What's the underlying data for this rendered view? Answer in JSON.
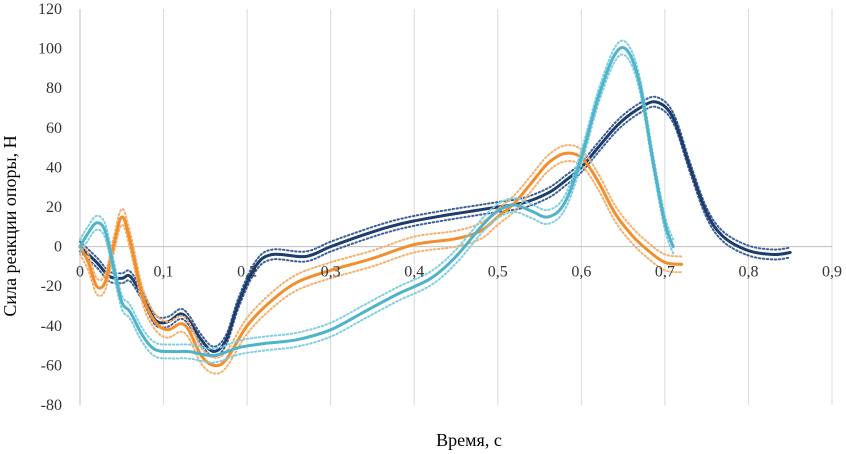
{
  "chart_data": {
    "type": "line",
    "title": "",
    "xlabel": "Время, с",
    "ylabel": "Сила реакции опоры, Н",
    "xlim": [
      0,
      0.9
    ],
    "ylim": [
      -80,
      120
    ],
    "x_ticks": [
      0,
      0.1,
      0.2,
      0.3,
      0.4,
      0.5,
      0.6,
      0.7,
      0.8,
      0.9
    ],
    "x_tick_labels": [
      "0",
      "0,1",
      "0,2",
      "0,3",
      "0,4",
      "0,5",
      "0,6",
      "0,7",
      "0,8",
      "0,9"
    ],
    "y_ticks": [
      -80,
      -60,
      -40,
      -20,
      0,
      20,
      40,
      60,
      80,
      100,
      120
    ],
    "y_tick_labels": [
      "-80",
      "-60",
      "-40",
      "-20",
      "0",
      "20",
      "40",
      "60",
      "80",
      "100",
      "120"
    ],
    "grid": "vertical",
    "legend": "none",
    "series": [
      {
        "color": "#1f3d6b",
        "band_color": "#3a5f9a",
        "band": 2.5,
        "points": [
          [
            0,
            0
          ],
          [
            0.02,
            -8
          ],
          [
            0.035,
            -15
          ],
          [
            0.05,
            -16
          ],
          [
            0.06,
            -15
          ],
          [
            0.075,
            -25
          ],
          [
            0.09,
            -37
          ],
          [
            0.105,
            -38
          ],
          [
            0.12,
            -34
          ],
          [
            0.13,
            -37
          ],
          [
            0.145,
            -47
          ],
          [
            0.16,
            -53
          ],
          [
            0.175,
            -47
          ],
          [
            0.19,
            -28
          ],
          [
            0.21,
            -10
          ],
          [
            0.23,
            -4
          ],
          [
            0.27,
            -5
          ],
          [
            0.3,
            0
          ],
          [
            0.34,
            6
          ],
          [
            0.37,
            10
          ],
          [
            0.4,
            13
          ],
          [
            0.44,
            16
          ],
          [
            0.47,
            18
          ],
          [
            0.5,
            20
          ],
          [
            0.53,
            22
          ],
          [
            0.56,
            27
          ],
          [
            0.58,
            33
          ],
          [
            0.6,
            40
          ],
          [
            0.62,
            50
          ],
          [
            0.645,
            62
          ],
          [
            0.67,
            70
          ],
          [
            0.69,
            73
          ],
          [
            0.71,
            65
          ],
          [
            0.73,
            40
          ],
          [
            0.75,
            17
          ],
          [
            0.77,
            5
          ],
          [
            0.8,
            -2
          ],
          [
            0.83,
            -4
          ],
          [
            0.85,
            -3
          ]
        ]
      },
      {
        "color": "#f28e2b",
        "band_color": "#f5b070",
        "band": 4,
        "points": [
          [
            0,
            0
          ],
          [
            0.01,
            -8
          ],
          [
            0.02,
            -20
          ],
          [
            0.03,
            -18
          ],
          [
            0.04,
            0
          ],
          [
            0.05,
            15
          ],
          [
            0.06,
            3
          ],
          [
            0.075,
            -25
          ],
          [
            0.09,
            -38
          ],
          [
            0.105,
            -42
          ],
          [
            0.12,
            -39
          ],
          [
            0.13,
            -42
          ],
          [
            0.145,
            -55
          ],
          [
            0.16,
            -60
          ],
          [
            0.175,
            -57
          ],
          [
            0.2,
            -40
          ],
          [
            0.23,
            -27
          ],
          [
            0.26,
            -18
          ],
          [
            0.3,
            -12
          ],
          [
            0.35,
            -6
          ],
          [
            0.4,
            1
          ],
          [
            0.45,
            4
          ],
          [
            0.48,
            8
          ],
          [
            0.5,
            15
          ],
          [
            0.52,
            22
          ],
          [
            0.54,
            32
          ],
          [
            0.56,
            42
          ],
          [
            0.58,
            47
          ],
          [
            0.6,
            45
          ],
          [
            0.62,
            33
          ],
          [
            0.64,
            17
          ],
          [
            0.66,
            6
          ],
          [
            0.68,
            -2
          ],
          [
            0.7,
            -8
          ],
          [
            0.72,
            -9
          ]
        ]
      },
      {
        "color": "#4fb3c9",
        "band_color": "#7fcfe0",
        "band": 3.5,
        "points": [
          [
            0,
            0
          ],
          [
            0.01,
            7
          ],
          [
            0.02,
            12
          ],
          [
            0.03,
            8
          ],
          [
            0.04,
            -10
          ],
          [
            0.05,
            -28
          ],
          [
            0.06,
            -33
          ],
          [
            0.075,
            -45
          ],
          [
            0.09,
            -52
          ],
          [
            0.11,
            -53
          ],
          [
            0.13,
            -53
          ],
          [
            0.16,
            -55
          ],
          [
            0.19,
            -51
          ],
          [
            0.22,
            -49
          ],
          [
            0.26,
            -47
          ],
          [
            0.3,
            -42
          ],
          [
            0.34,
            -33
          ],
          [
            0.38,
            -24
          ],
          [
            0.42,
            -16
          ],
          [
            0.45,
            -5
          ],
          [
            0.48,
            10
          ],
          [
            0.5,
            18
          ],
          [
            0.52,
            21
          ],
          [
            0.54,
            18
          ],
          [
            0.56,
            15
          ],
          [
            0.58,
            22
          ],
          [
            0.6,
            45
          ],
          [
            0.62,
            75
          ],
          [
            0.64,
            97
          ],
          [
            0.655,
            99
          ],
          [
            0.67,
            82
          ],
          [
            0.685,
            45
          ],
          [
            0.7,
            12
          ],
          [
            0.71,
            0
          ]
        ]
      }
    ]
  }
}
